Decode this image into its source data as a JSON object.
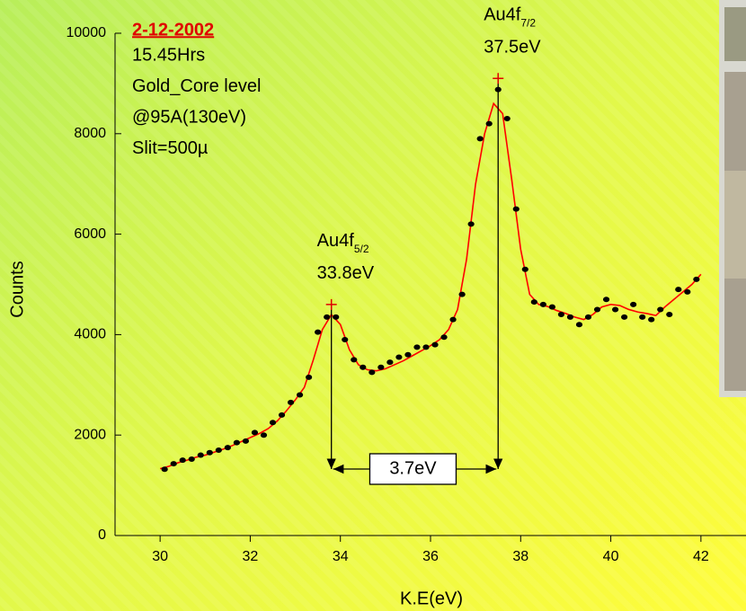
{
  "chart_data": {
    "type": "scatter",
    "xlabel": "K.E(eV)",
    "ylabel": "Counts",
    "xlim": [
      29,
      43
    ],
    "ylim": [
      0,
      10000
    ],
    "xticks": [
      30,
      32,
      34,
      36,
      38,
      40,
      42
    ],
    "yticks": [
      0,
      2000,
      4000,
      6000,
      8000,
      10000
    ],
    "info": {
      "date": "2-12-2002",
      "lines": [
        "15.45Hrs",
        "Gold_Core level",
        "@95A(130eV)",
        "Slit=500µ"
      ]
    },
    "peaks": [
      {
        "name": "Au4f",
        "sub": "5/2",
        "energy": "33.8eV",
        "x": 33.8,
        "y": 4600
      },
      {
        "name": "Au4f",
        "sub": "7/2",
        "energy": "37.5eV",
        "x": 37.5,
        "y": 9100
      }
    ],
    "separation_label": "3.7eV",
    "points": {
      "color": "#000000",
      "x": [
        30.1,
        30.3,
        30.5,
        30.7,
        30.9,
        31.1,
        31.3,
        31.5,
        31.7,
        31.9,
        32.1,
        32.3,
        32.5,
        32.7,
        32.9,
        33.1,
        33.3,
        33.5,
        33.7,
        33.9,
        34.1,
        34.3,
        34.5,
        34.7,
        34.9,
        35.1,
        35.3,
        35.5,
        35.7,
        35.9,
        36.1,
        36.3,
        36.5,
        36.7,
        36.9,
        37.1,
        37.3,
        37.5,
        37.7,
        37.9,
        38.1,
        38.3,
        38.5,
        38.7,
        38.9,
        39.1,
        39.3,
        39.5,
        39.7,
        39.9,
        40.1,
        40.3,
        40.5,
        40.7,
        40.9,
        41.1,
        41.3,
        41.5,
        41.7,
        41.9
      ],
      "values": [
        1320,
        1430,
        1500,
        1520,
        1600,
        1650,
        1700,
        1750,
        1850,
        1880,
        2050,
        2000,
        2250,
        2400,
        2650,
        2800,
        3150,
        4050,
        4350,
        4350,
        3900,
        3500,
        3350,
        3250,
        3350,
        3450,
        3550,
        3600,
        3750,
        3750,
        3800,
        3950,
        4300,
        4800,
        6200,
        7900,
        8200,
        8880,
        8300,
        6500,
        5300,
        4650,
        4600,
        4550,
        4400,
        4350,
        4200,
        4350,
        4500,
        4700,
        4500,
        4350,
        4600,
        4350,
        4300,
        4500,
        4400,
        4900,
        4850,
        5100
      ]
    },
    "fit": {
      "color": "#ff0000",
      "x": [
        30.0,
        30.2,
        30.4,
        30.6,
        30.8,
        31.0,
        31.2,
        31.4,
        31.6,
        31.8,
        32.0,
        32.2,
        32.4,
        32.6,
        32.8,
        33.0,
        33.2,
        33.4,
        33.6,
        33.8,
        34.0,
        34.2,
        34.4,
        34.6,
        34.8,
        35.0,
        35.2,
        35.4,
        35.6,
        35.8,
        36.0,
        36.2,
        36.4,
        36.6,
        36.8,
        37.0,
        37.2,
        37.4,
        37.6,
        37.8,
        38.0,
        38.2,
        38.4,
        38.6,
        38.8,
        39.0,
        39.2,
        39.4,
        39.6,
        39.8,
        40.0,
        40.2,
        40.4,
        40.6,
        40.8,
        41.0,
        41.2,
        41.4,
        41.6,
        41.8,
        42.0
      ],
      "values": [
        1330,
        1380,
        1450,
        1500,
        1560,
        1600,
        1660,
        1720,
        1790,
        1870,
        1950,
        2030,
        2130,
        2280,
        2480,
        2700,
        2950,
        3500,
        4100,
        4400,
        4200,
        3700,
        3400,
        3300,
        3280,
        3320,
        3400,
        3480,
        3580,
        3680,
        3780,
        3900,
        4100,
        4500,
        5500,
        7000,
        8000,
        8600,
        8400,
        7100,
        5700,
        4800,
        4600,
        4560,
        4480,
        4420,
        4350,
        4300,
        4400,
        4550,
        4600,
        4580,
        4500,
        4450,
        4420,
        4380,
        4550,
        4700,
        4850,
        5000,
        5200
      ]
    }
  }
}
